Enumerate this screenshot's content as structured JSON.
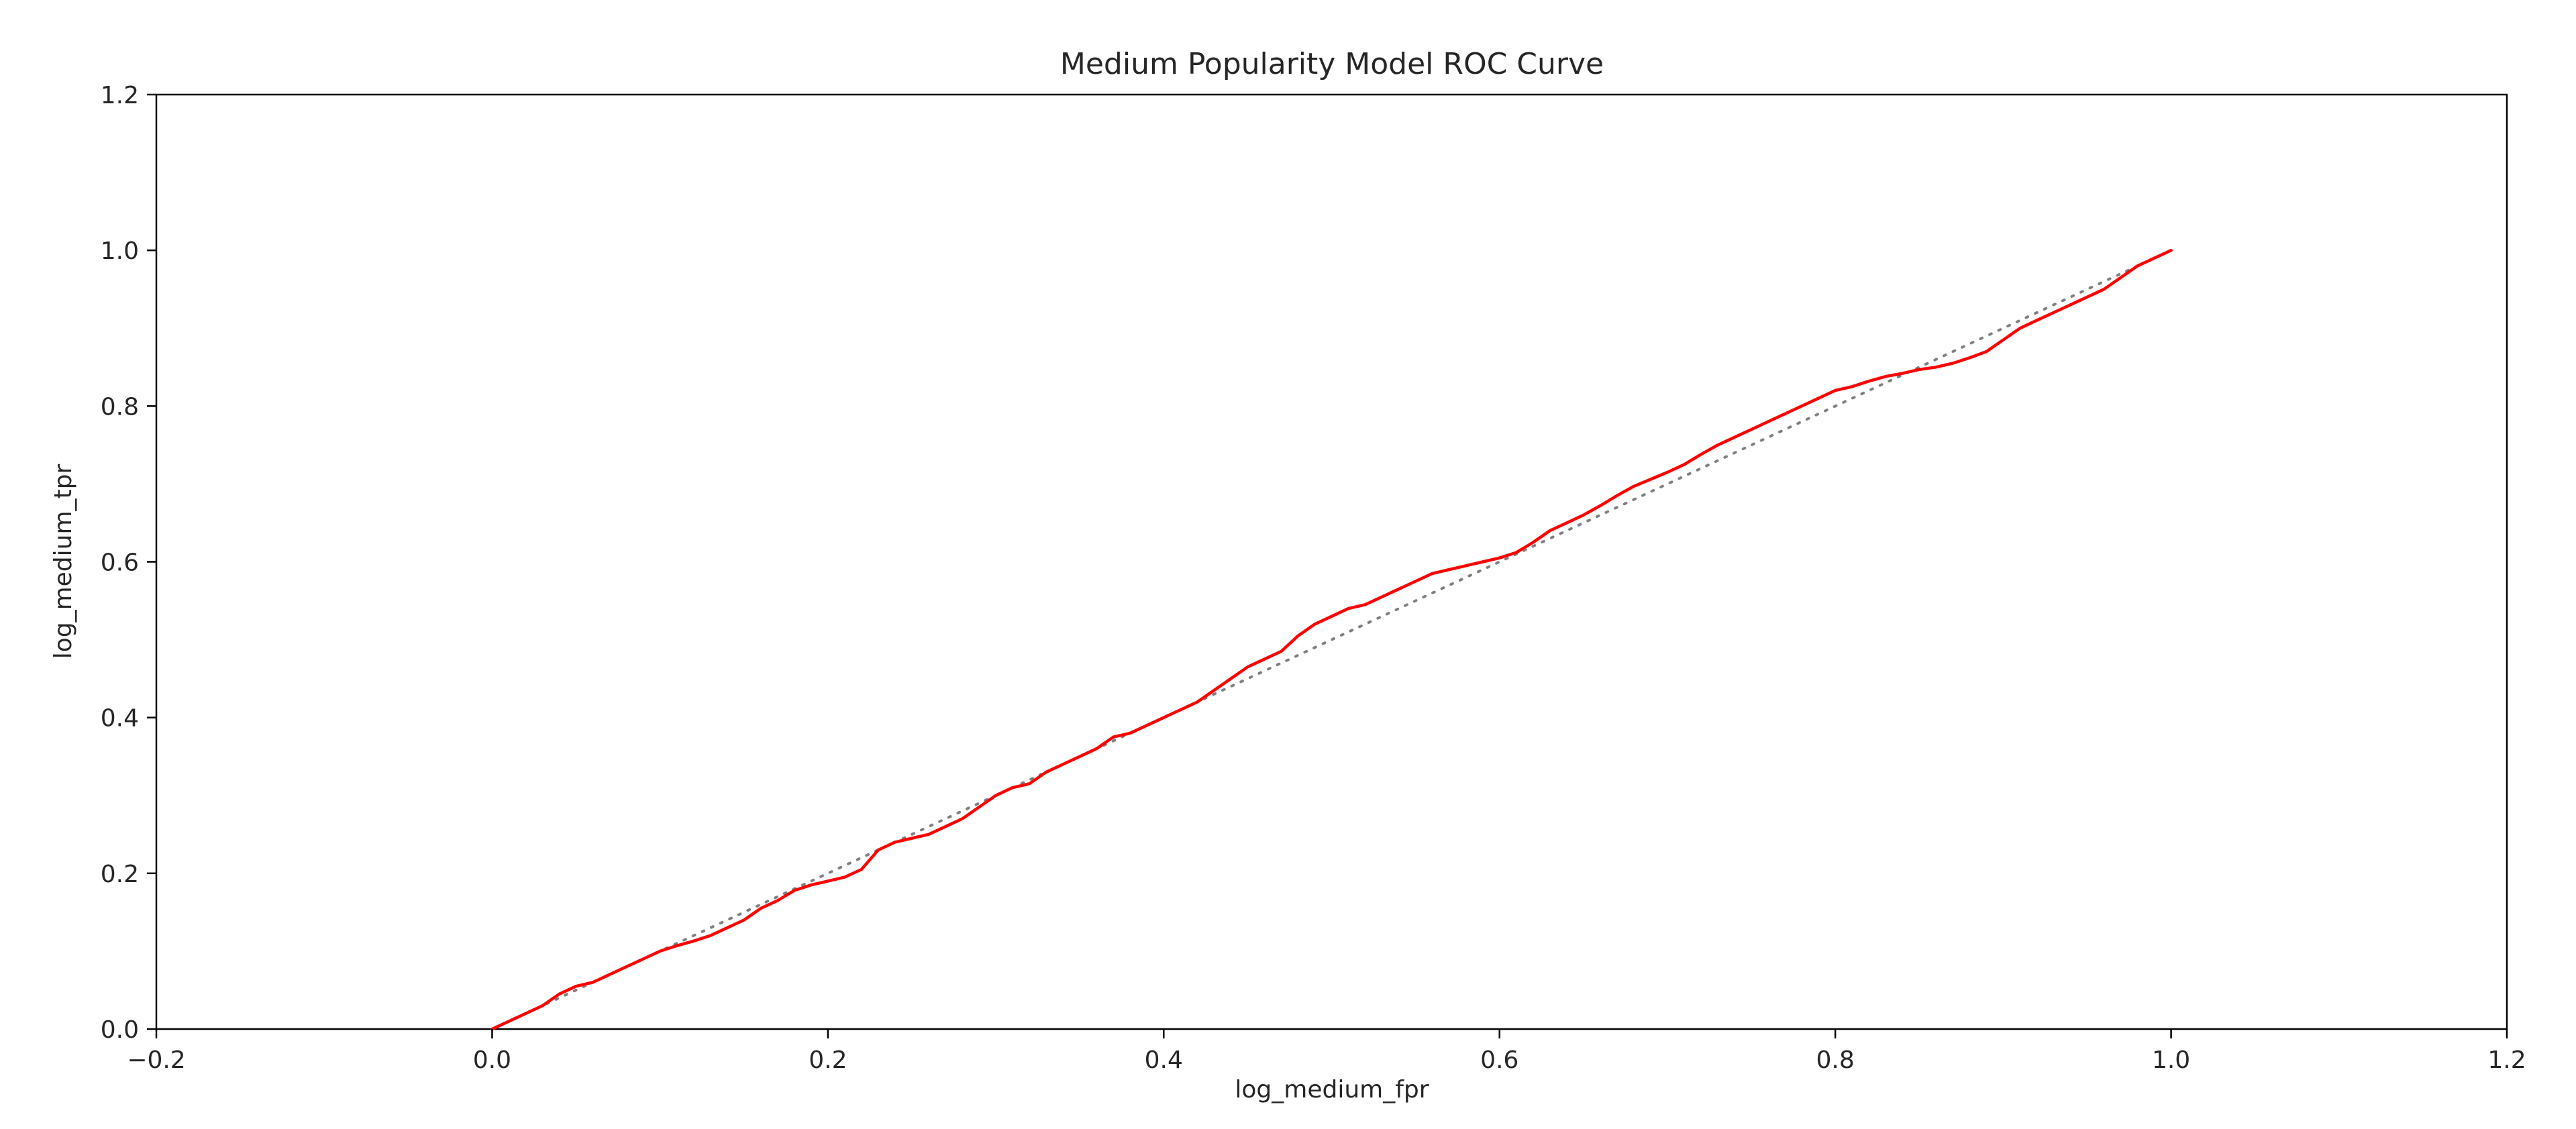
{
  "chart_data": {
    "type": "line",
    "title": "Medium Popularity Model ROC Curve",
    "xlabel": "log_medium_fpr",
    "ylabel": "log_medium_tpr",
    "xlim": [
      -0.2,
      1.2
    ],
    "ylim": [
      0.0,
      1.2
    ],
    "xticks": [
      -0.2,
      0.0,
      0.2,
      0.4,
      0.6,
      0.8,
      1.0,
      1.2
    ],
    "xtick_labels": [
      "−0.2",
      "0.0",
      "0.2",
      "0.4",
      "0.6",
      "0.8",
      "1.0",
      "1.2"
    ],
    "yticks": [
      0.0,
      0.2,
      0.4,
      0.6,
      0.8,
      1.0,
      1.2
    ],
    "ytick_labels": [
      "0.0",
      "0.2",
      "0.4",
      "0.6",
      "0.8",
      "1.0",
      "1.2"
    ],
    "grid": false,
    "series": [
      {
        "style": "solid",
        "color": "#ff0000",
        "x": [
          0.0,
          0.01,
          0.02,
          0.03,
          0.04,
          0.05,
          0.06,
          0.07,
          0.08,
          0.09,
          0.1,
          0.11,
          0.12,
          0.13,
          0.14,
          0.15,
          0.16,
          0.17,
          0.18,
          0.19,
          0.2,
          0.21,
          0.22,
          0.23,
          0.24,
          0.25,
          0.26,
          0.27,
          0.28,
          0.29,
          0.3,
          0.31,
          0.32,
          0.33,
          0.34,
          0.35,
          0.36,
          0.37,
          0.38,
          0.39,
          0.4,
          0.41,
          0.42,
          0.43,
          0.44,
          0.45,
          0.46,
          0.47,
          0.48,
          0.49,
          0.5,
          0.51,
          0.52,
          0.53,
          0.54,
          0.55,
          0.56,
          0.57,
          0.58,
          0.59,
          0.6,
          0.61,
          0.62,
          0.63,
          0.64,
          0.65,
          0.66,
          0.67,
          0.68,
          0.69,
          0.7,
          0.71,
          0.72,
          0.73,
          0.74,
          0.75,
          0.76,
          0.77,
          0.78,
          0.79,
          0.8,
          0.81,
          0.82,
          0.83,
          0.84,
          0.85,
          0.86,
          0.87,
          0.88,
          0.89,
          0.9,
          0.91,
          0.92,
          0.93,
          0.94,
          0.95,
          0.96,
          0.97,
          0.98,
          0.99,
          1.0
        ],
        "y": [
          0.0,
          0.01,
          0.02,
          0.03,
          0.045,
          0.055,
          0.06,
          0.07,
          0.08,
          0.09,
          0.1,
          0.107,
          0.113,
          0.12,
          0.13,
          0.14,
          0.155,
          0.165,
          0.178,
          0.185,
          0.19,
          0.195,
          0.205,
          0.23,
          0.24,
          0.245,
          0.25,
          0.26,
          0.27,
          0.285,
          0.3,
          0.31,
          0.315,
          0.33,
          0.34,
          0.35,
          0.36,
          0.375,
          0.38,
          0.39,
          0.4,
          0.41,
          0.42,
          0.435,
          0.45,
          0.465,
          0.475,
          0.485,
          0.505,
          0.52,
          0.53,
          0.54,
          0.545,
          0.555,
          0.565,
          0.575,
          0.585,
          0.59,
          0.595,
          0.6,
          0.605,
          0.612,
          0.625,
          0.64,
          0.65,
          0.66,
          0.672,
          0.685,
          0.697,
          0.706,
          0.715,
          0.725,
          0.738,
          0.75,
          0.76,
          0.77,
          0.78,
          0.79,
          0.8,
          0.81,
          0.82,
          0.825,
          0.832,
          0.838,
          0.842,
          0.847,
          0.85,
          0.855,
          0.862,
          0.87,
          0.885,
          0.9,
          0.91,
          0.92,
          0.93,
          0.94,
          0.95,
          0.965,
          0.98,
          0.99,
          1.0
        ]
      },
      {
        "style": "dotted",
        "color": "#808080",
        "x": [
          0.0,
          1.0
        ],
        "y": [
          0.0,
          1.0
        ]
      }
    ]
  }
}
